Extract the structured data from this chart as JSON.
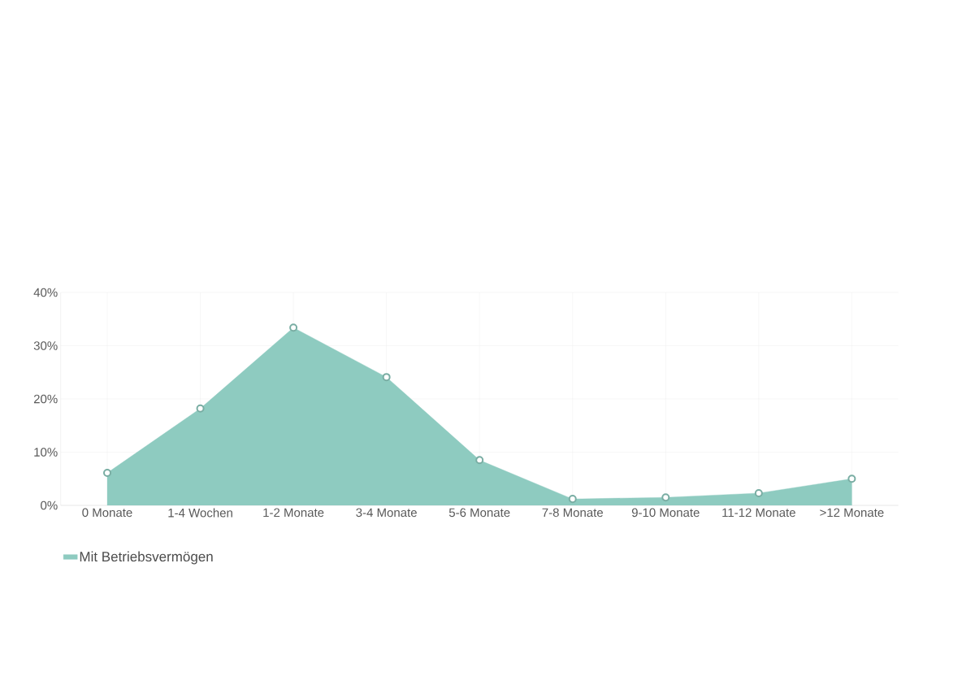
{
  "chart_data": {
    "type": "area",
    "categories": [
      "0 Monate",
      "1-4 Wochen",
      "1-2 Monate",
      "3-4 Monate",
      "5-6 Monate",
      "7-8 Monate",
      "9-10 Monate",
      "11-12 Monate",
      ">12 Monate"
    ],
    "series": [
      {
        "name": "Mit Betriebsvermögen",
        "color": "#8ecbc0",
        "values": [
          6.1,
          18.2,
          33.4,
          24.1,
          8.5,
          1.2,
          1.5,
          2.3,
          5.0
        ]
      }
    ],
    "ylim": [
      0,
      40
    ],
    "yticks": [
      {
        "value": 0,
        "label": "0%"
      },
      {
        "value": 10,
        "label": "10%"
      },
      {
        "value": 20,
        "label": "20%"
      },
      {
        "value": 30,
        "label": "30%"
      },
      {
        "value": 40,
        "label": "40%"
      }
    ],
    "grid": true,
    "legend": "bottom left",
    "marker": "circle"
  }
}
